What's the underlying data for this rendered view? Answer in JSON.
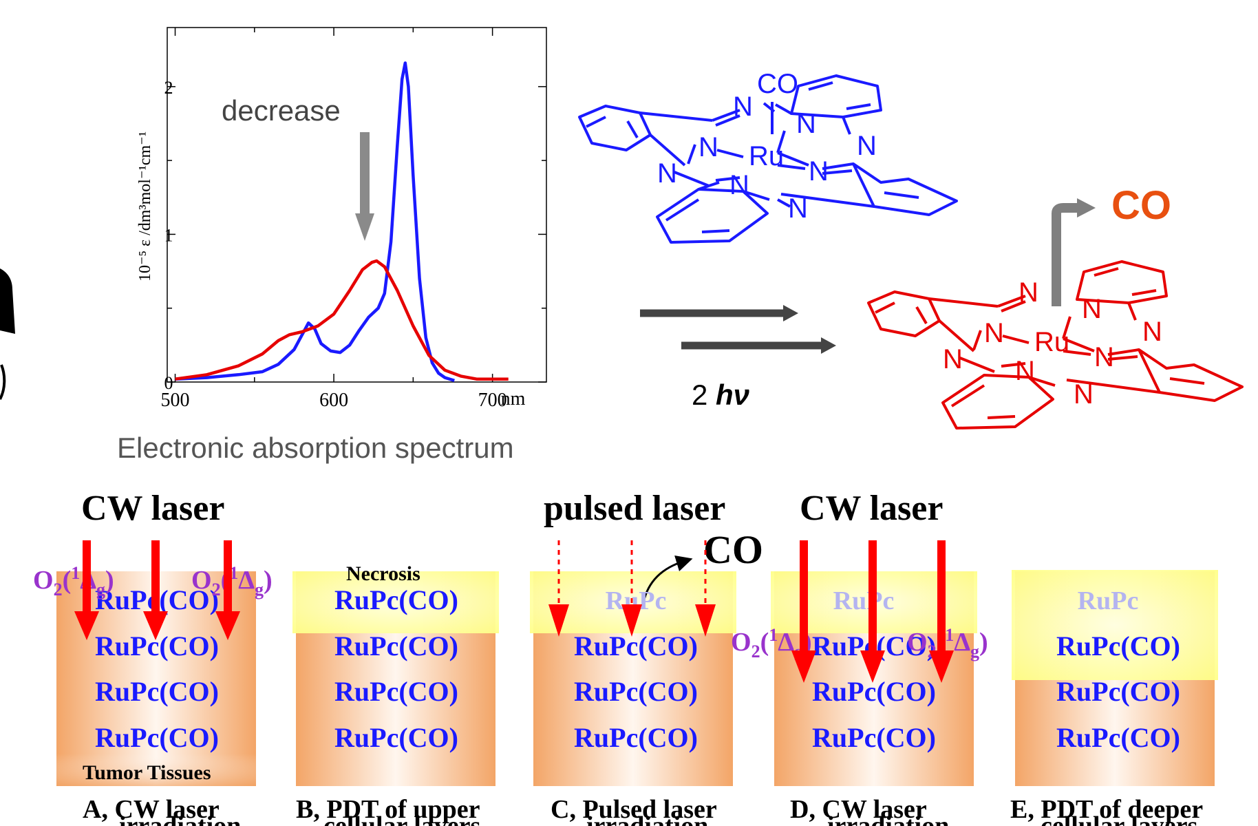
{
  "chart_data": {
    "type": "line",
    "title": "",
    "xlabel": "nm",
    "ylabel": "10⁻⁵ ε /dm³mol⁻¹cm⁻¹",
    "xlim": [
      500,
      700
    ],
    "ylim": [
      0,
      2.2
    ],
    "x_ticks": [
      "500",
      "600",
      "700"
    ],
    "y_ticks": [
      "0",
      "1",
      "2"
    ],
    "annotation": "decrease",
    "series": [
      {
        "color": "#1a1aff",
        "x": [
          500,
          520,
          540,
          555,
          565,
          575,
          580,
          584,
          588,
          592,
          598,
          604,
          610,
          616,
          622,
          628,
          632,
          636,
          640,
          643,
          645,
          647,
          650,
          654,
          658,
          662,
          666,
          670,
          676
        ],
        "y": [
          0.02,
          0.03,
          0.05,
          0.07,
          0.12,
          0.22,
          0.32,
          0.4,
          0.36,
          0.26,
          0.21,
          0.2,
          0.25,
          0.35,
          0.44,
          0.5,
          0.6,
          0.95,
          1.6,
          2.05,
          2.16,
          2.0,
          1.4,
          0.7,
          0.3,
          0.13,
          0.06,
          0.03,
          0.01
        ]
      },
      {
        "color": "#e60000",
        "x": [
          500,
          520,
          540,
          555,
          565,
          572,
          580,
          590,
          600,
          610,
          618,
          624,
          627,
          632,
          640,
          650,
          660,
          670,
          680,
          690,
          700,
          710
        ],
        "y": [
          0.02,
          0.05,
          0.11,
          0.19,
          0.28,
          0.32,
          0.34,
          0.38,
          0.46,
          0.62,
          0.76,
          0.81,
          0.82,
          0.78,
          0.62,
          0.38,
          0.18,
          0.08,
          0.04,
          0.02,
          0.02,
          0.02
        ]
      }
    ]
  },
  "spectrum_caption": "Electronic absorption spectrum",
  "scheme": {
    "light": "2 hν",
    "light_num": "2",
    "light_sym": "hν",
    "released": "CO",
    "colors": {
      "intact": "#1a1aff",
      "photolyzed": "#e60000",
      "arrow": "#444444",
      "release_arrow": "#7f7f7f"
    }
  },
  "molecule_labels": {
    "n": "N",
    "ru": "Ru",
    "co": "CO"
  },
  "lasers": {
    "cw1": "CW laser",
    "pulsed": "pulsed laser",
    "cw2": "CW laser",
    "co": "CO"
  },
  "panels": [
    {
      "letter": "A,",
      "caption1": "CW laser",
      "caption2": "irradiation"
    },
    {
      "letter": "B,",
      "caption1": "PDT of upper",
      "caption2": "cellular layers"
    },
    {
      "letter": "C,",
      "caption1": "Pulsed laser",
      "caption2": "irradiation"
    },
    {
      "letter": "D,",
      "caption1": "CW laser",
      "caption2": "irradiation"
    },
    {
      "letter": "E,",
      "caption1": "PDT of deeper",
      "caption2": "cellular layers"
    }
  ],
  "tissue": {
    "compound": "RuPc(CO)",
    "compound_faded": "RuPc",
    "necrosis": "Necrosis",
    "tumor": "Tumor Tissues",
    "singlet_o2": {
      "o": "O",
      "sub": "2",
      "open": "(",
      "sup": "1",
      "delta": "Δ",
      "g": "g",
      "close": ")"
    },
    "colors": {
      "compound": "#1a1aff",
      "faded": "#b4b4f0",
      "o2": "#9933cc",
      "tissue": "#f5b27a",
      "necrosis": "#ffff99"
    }
  }
}
